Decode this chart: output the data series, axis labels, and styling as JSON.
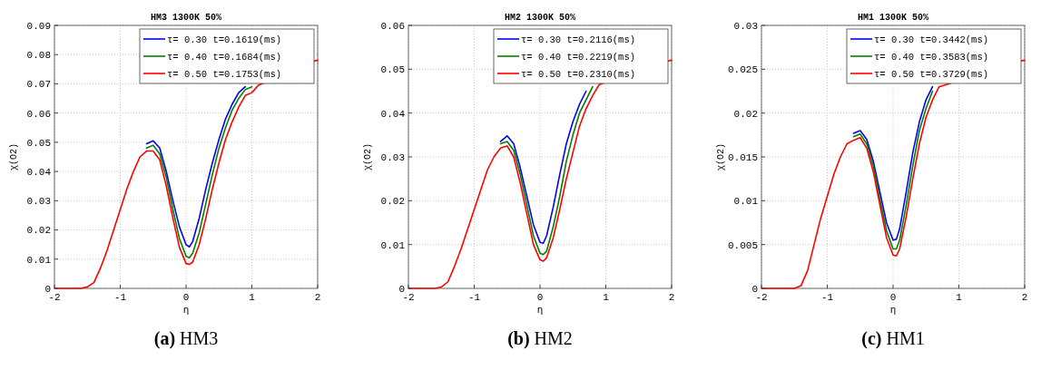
{
  "chart_data": [
    {
      "type": "line",
      "title": "HM3 1300K 50%",
      "xlabel": "η",
      "ylabel": "χ(O2)",
      "annotations": [
        "(a) HM3"
      ],
      "legend": "top right",
      "grid": true,
      "marker": "none",
      "line_style": "solid",
      "xlim": [
        -2,
        2
      ],
      "ylim": [
        0,
        0.09
      ],
      "xticks": [
        -2,
        -1,
        0,
        1,
        2
      ],
      "yticks": [
        0,
        0.01,
        0.02,
        0.03,
        0.04,
        0.05,
        0.06,
        0.07,
        0.08,
        0.09
      ],
      "x": [
        -2,
        -1.8,
        -1.6,
        -1.5,
        -1.4,
        -1.3,
        -1.2,
        -1.1,
        -1,
        -0.9,
        -0.8,
        -0.7,
        -0.6,
        -0.5,
        -0.4,
        -0.3,
        -0.2,
        -0.1,
        0,
        0.05,
        0.1,
        0.2,
        0.3,
        0.4,
        0.5,
        0.6,
        0.7,
        0.8,
        0.9,
        1,
        1.1,
        1.97,
        2
      ],
      "series": [
        {
          "name": "τ= 0.30 t=0.1619(ms)",
          "color": "#0000ff",
          "values": [
            null,
            null,
            null,
            null,
            null,
            null,
            null,
            null,
            null,
            null,
            null,
            null,
            0.0495,
            0.0505,
            0.048,
            0.04,
            0.03,
            0.021,
            0.015,
            0.0142,
            0.016,
            0.024,
            0.034,
            0.043,
            0.051,
            0.058,
            0.063,
            0.067,
            0.069,
            null,
            null,
            null,
            null
          ]
        },
        {
          "name": "τ= 0.40 t=0.1684(ms)",
          "color": "#008000",
          "values": [
            null,
            null,
            null,
            null,
            null,
            null,
            null,
            null,
            null,
            null,
            null,
            null,
            0.048,
            0.049,
            0.046,
            0.038,
            0.027,
            0.017,
            0.011,
            0.0105,
            0.012,
            0.019,
            0.029,
            0.039,
            0.048,
            0.055,
            0.061,
            0.065,
            0.068,
            0.069,
            null,
            null,
            null
          ]
        },
        {
          "name": "τ= 0.50 t=0.1753(ms)",
          "color": "#ff0000",
          "values": [
            0,
            0,
            0,
            0.0005,
            0.002,
            0.007,
            0.013,
            0.02,
            0.027,
            0.034,
            0.04,
            0.045,
            0.047,
            0.047,
            0.044,
            0.035,
            0.024,
            0.014,
            0.0085,
            0.0082,
            0.009,
            0.015,
            0.024,
            0.034,
            0.043,
            0.051,
            0.057,
            0.062,
            0.066,
            0.067,
            0.0695,
            0.078,
            0.078
          ]
        }
      ]
    },
    {
      "type": "line",
      "title": "HM2 1300K 50%",
      "xlabel": "η",
      "ylabel": "χ(O2)",
      "annotations": [
        "(b) HM2"
      ],
      "legend": "top right",
      "grid": true,
      "marker": "none",
      "line_style": "solid",
      "xlim": [
        -2,
        2
      ],
      "ylim": [
        0,
        0.06
      ],
      "xticks": [
        -2,
        -1,
        0,
        1,
        2
      ],
      "yticks": [
        0,
        0.01,
        0.02,
        0.03,
        0.04,
        0.05,
        0.06
      ],
      "x": [
        -2,
        -1.8,
        -1.6,
        -1.5,
        -1.4,
        -1.3,
        -1.2,
        -1.1,
        -1,
        -0.9,
        -0.8,
        -0.7,
        -0.6,
        -0.5,
        -0.4,
        -0.3,
        -0.2,
        -0.1,
        0,
        0.05,
        0.1,
        0.2,
        0.3,
        0.4,
        0.5,
        0.6,
        0.7,
        0.8,
        0.9,
        1.97,
        2
      ],
      "series": [
        {
          "name": "τ= 0.30 t=0.2116(ms)",
          "color": "#0000ff",
          "values": [
            null,
            null,
            null,
            null,
            null,
            null,
            null,
            null,
            null,
            null,
            null,
            null,
            0.0335,
            0.0348,
            0.033,
            0.0275,
            0.021,
            0.0145,
            0.0105,
            0.0103,
            0.012,
            0.0185,
            0.026,
            0.033,
            0.038,
            0.042,
            0.045,
            null,
            null,
            null,
            null
          ]
        },
        {
          "name": "τ= 0.40 t=0.2219(ms)",
          "color": "#008000",
          "values": [
            null,
            null,
            null,
            null,
            null,
            null,
            null,
            null,
            null,
            null,
            null,
            null,
            0.033,
            0.0335,
            0.0315,
            0.026,
            0.019,
            0.012,
            0.008,
            0.0077,
            0.0085,
            0.014,
            0.021,
            0.029,
            0.035,
            0.04,
            0.043,
            0.046,
            null,
            null,
            null
          ]
        },
        {
          "name": "τ= 0.50 t=0.2310(ms)",
          "color": "#ff0000",
          "values": [
            0,
            0,
            0,
            0.0003,
            0.0015,
            0.005,
            0.009,
            0.0135,
            0.018,
            0.0225,
            0.027,
            0.03,
            0.032,
            0.0325,
            0.03,
            0.024,
            0.017,
            0.01,
            0.0065,
            0.0062,
            0.007,
            0.0115,
            0.018,
            0.025,
            0.031,
            0.037,
            0.041,
            0.044,
            0.0465,
            0.052,
            0.052
          ]
        }
      ]
    },
    {
      "type": "line",
      "title": "HM1 1300K 50%",
      "xlabel": "η",
      "ylabel": "χ(O2)",
      "annotations": [
        "(c) HM1"
      ],
      "legend": "top right",
      "grid": true,
      "marker": "none",
      "line_style": "solid",
      "xlim": [
        -2,
        2
      ],
      "ylim": [
        0,
        0.03
      ],
      "xticks": [
        -2,
        -1,
        0,
        1,
        2
      ],
      "yticks": [
        0,
        0.005,
        0.01,
        0.015,
        0.02,
        0.025,
        0.03
      ],
      "x": [
        -2,
        -1.8,
        -1.6,
        -1.5,
        -1.4,
        -1.3,
        -1.2,
        -1.1,
        -1,
        -0.9,
        -0.8,
        -0.7,
        -0.6,
        -0.5,
        -0.4,
        -0.3,
        -0.2,
        -0.1,
        0,
        0.05,
        0.1,
        0.2,
        0.3,
        0.4,
        0.5,
        0.6,
        0.7,
        1.97,
        2
      ],
      "series": [
        {
          "name": "τ= 0.30 t=0.3442(ms)",
          "color": "#0000ff",
          "values": [
            null,
            null,
            null,
            null,
            null,
            null,
            null,
            null,
            null,
            null,
            null,
            null,
            0.0177,
            0.018,
            0.017,
            0.0145,
            0.011,
            0.0075,
            0.0055,
            0.0056,
            0.0068,
            0.011,
            0.0155,
            0.019,
            0.0215,
            0.023,
            null,
            null,
            null
          ]
        },
        {
          "name": "τ= 0.40 t=0.3583(ms)",
          "color": "#008000",
          "values": [
            null,
            null,
            null,
            null,
            null,
            null,
            null,
            null,
            null,
            null,
            null,
            null,
            0.0173,
            0.0176,
            0.0165,
            0.014,
            0.0102,
            0.0066,
            0.0045,
            0.0045,
            0.0055,
            0.0095,
            0.014,
            0.018,
            0.0205,
            0.0225,
            null,
            null,
            null
          ]
        },
        {
          "name": "τ= 0.50 t=0.3729(ms)",
          "color": "#ff0000",
          "values": [
            0,
            0,
            0,
            0,
            0.0003,
            0.002,
            0.005,
            0.008,
            0.0105,
            0.013,
            0.015,
            0.0165,
            0.0169,
            0.0172,
            0.016,
            0.0133,
            0.0095,
            0.0058,
            0.0038,
            0.0037,
            0.0045,
            0.0082,
            0.0125,
            0.0165,
            0.0195,
            0.0215,
            0.023,
            0.026,
            0.026
          ]
        }
      ]
    }
  ]
}
